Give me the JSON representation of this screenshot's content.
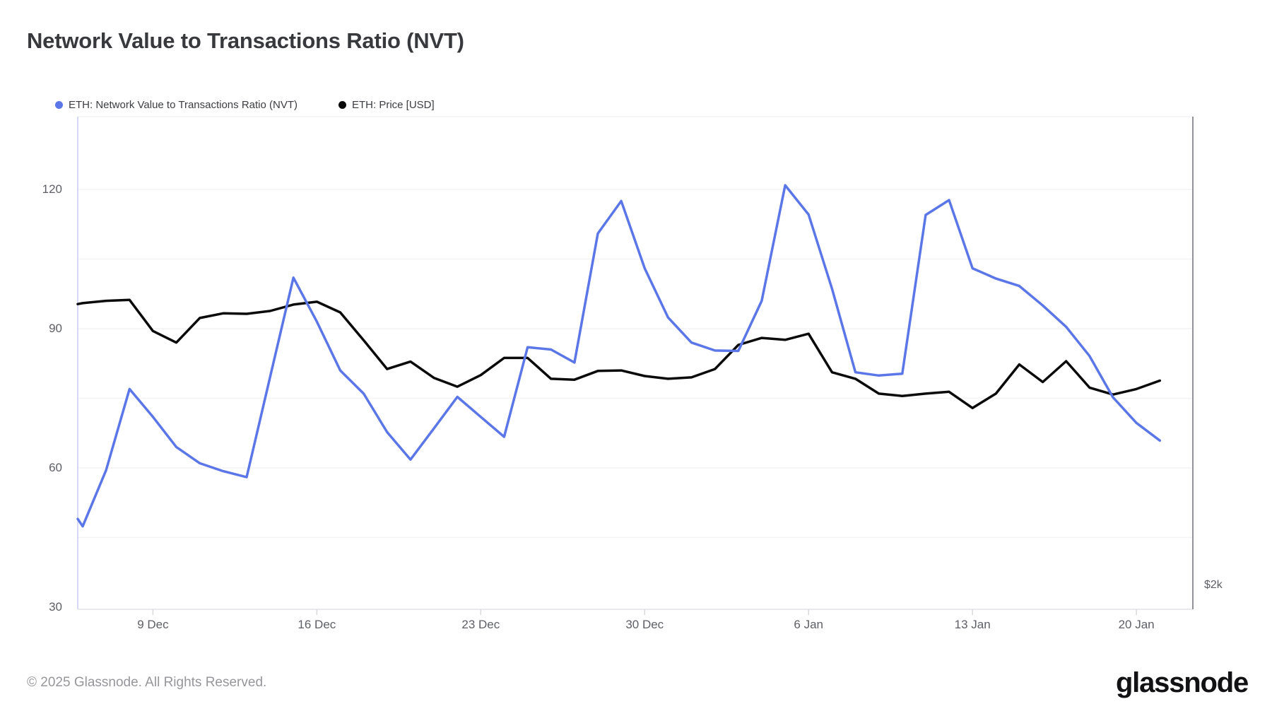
{
  "page": {
    "title": "Network Value to Transactions Ratio (NVT)",
    "footer_copyright": "© 2025 Glassnode. All Rights Reserved.",
    "brand_logo_text": "glassnode"
  },
  "legend": [
    {
      "label": "ETH: Network Value to Transactions Ratio (NVT)",
      "color": "#5B76E7"
    },
    {
      "label": "ETH: Price [USD]",
      "color": "#0A0A0B"
    }
  ],
  "chart_data": {
    "type": "line",
    "title": "Network Value to Transactions Ratio (NVT)",
    "x": [
      "5 Dec",
      "6 Dec",
      "7 Dec",
      "8 Dec",
      "9 Dec",
      "10 Dec",
      "11 Dec",
      "12 Dec",
      "13 Dec",
      "14 Dec",
      "15 Dec",
      "16 Dec",
      "17 Dec",
      "18 Dec",
      "19 Dec",
      "20 Dec",
      "21 Dec",
      "22 Dec",
      "23 Dec",
      "24 Dec",
      "25 Dec",
      "26 Dec",
      "27 Dec",
      "28 Dec",
      "29 Dec",
      "30 Dec",
      "31 Dec",
      "1 Jan",
      "2 Jan",
      "3 Jan",
      "4 Jan",
      "5 Jan",
      "6 Jan",
      "7 Jan",
      "8 Jan",
      "9 Jan",
      "10 Jan",
      "11 Jan",
      "12 Jan",
      "13 Jan",
      "14 Jan",
      "15 Jan",
      "16 Jan",
      "17 Jan",
      "18 Jan",
      "19 Jan",
      "20 Jan",
      "21 Jan"
    ],
    "series": [
      {
        "name": "ETH: Network Value to Transactions Ratio (NVT)",
        "color": "#5B76E7",
        "axis": "left",
        "units": "NVT ratio",
        "values": [
          49,
          47.4,
          59.5,
          77,
          71,
          64.5,
          61,
          59.3,
          58,
          79.5,
          101,
          91.5,
          81,
          76,
          67.7,
          61.8,
          68.5,
          75.3,
          71,
          66.7,
          86,
          85.5,
          82.7,
          110.5,
          117.5,
          103,
          92.4,
          87,
          85.3,
          85.2,
          96,
          120.9,
          114.6,
          98.6,
          80.6,
          79.9,
          80.3,
          114.5,
          117.7,
          103,
          100.8,
          99.2,
          95,
          90.4,
          84.1,
          75.2,
          69.7,
          65.9
        ]
      },
      {
        "name": "ETH: Price [USD]",
        "color": "#0A0A0B",
        "axis": "right",
        "units": "plotted in left-axis display units; right axis shows only the $2k tick",
        "values": [
          95.3,
          95.5,
          96,
          96.2,
          89.5,
          87,
          92.3,
          93.3,
          93.2,
          93.8,
          95.2,
          95.8,
          93.5,
          87.5,
          81.3,
          82.9,
          79.4,
          77.5,
          80,
          83.7,
          83.7,
          79.2,
          79,
          80.9,
          81,
          79.8,
          79.2,
          79.5,
          81.3,
          86.5,
          88,
          87.6,
          88.9,
          80.6,
          79.2,
          76,
          75.5,
          76,
          76.4,
          72.9,
          76,
          82.3,
          78.5,
          83,
          77.3,
          75.8,
          77,
          78.8
        ]
      }
    ],
    "y_axis": {
      "ticks": [
        120,
        90,
        60,
        30
      ],
      "range": [
        30,
        135
      ],
      "gridline_step": 15,
      "grid": "horizontal"
    },
    "x_ticks": {
      "labels": [
        "9 Dec",
        "16 Dec",
        "23 Dec",
        "30 Dec",
        "6 Jan",
        "13 Jan",
        "20 Jan"
      ],
      "point_indices": [
        4,
        11,
        18,
        25,
        32,
        39,
        46
      ]
    },
    "right_axis": {
      "visible_tick_label": "$2k"
    },
    "legend_position": "top-left"
  },
  "colors": {
    "nvt_line": "#5B76E7",
    "price_line": "#0A0A0B",
    "gridline": "#F3F3F6",
    "left_axis_line": "#C8CEF4",
    "bottom_axis_line": "#E4E4E9",
    "right_axis_line": "#929298",
    "tick_mark": "#D8D8DD"
  }
}
